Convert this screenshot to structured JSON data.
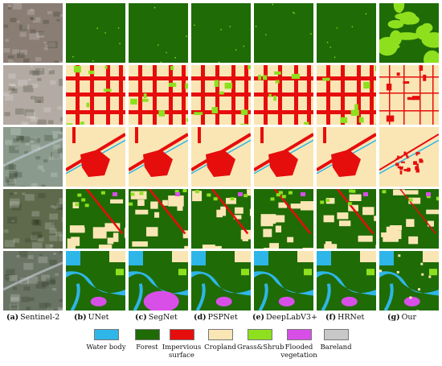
{
  "columns": [
    {
      "letter": "(a)",
      "label": "Sentinel-2"
    },
    {
      "letter": "(b)",
      "label": "UNet"
    },
    {
      "letter": "(c)",
      "label": "SegNet"
    },
    {
      "letter": "(d)",
      "label": "PSPNet"
    },
    {
      "letter": "(e)",
      "label": "DeepLabV3+"
    },
    {
      "letter": "(f)",
      "label": "HRNet"
    },
    {
      "letter": "(g)",
      "label": "Our"
    }
  ],
  "legend": [
    {
      "label": "Water body",
      "color": "#2fb6e8"
    },
    {
      "label": "Forest",
      "color": "#1f6b06"
    },
    {
      "label": "Impervious surface",
      "color": "#e60d0d"
    },
    {
      "label": "Cropland",
      "color": "#fae6b4"
    },
    {
      "label": "Grass&Shrub",
      "color": "#8ee01e"
    },
    {
      "label": "Flooded vegetation",
      "color": "#d84fe8"
    },
    {
      "label": "Bareland",
      "color": "#c8c8c8"
    }
  ],
  "rows": [
    {
      "satellite_color": "#8a7d74",
      "base_class": "Forest"
    },
    {
      "satellite_color": "#b3aaa3",
      "base_class": "Cropland"
    },
    {
      "satellite_color": "#8a9a8c",
      "base_class": "Cropland"
    },
    {
      "satellite_color": "#5f6a4c",
      "base_class": "Forest"
    },
    {
      "satellite_color": "#6a7464",
      "base_class": "Forest"
    }
  ]
}
